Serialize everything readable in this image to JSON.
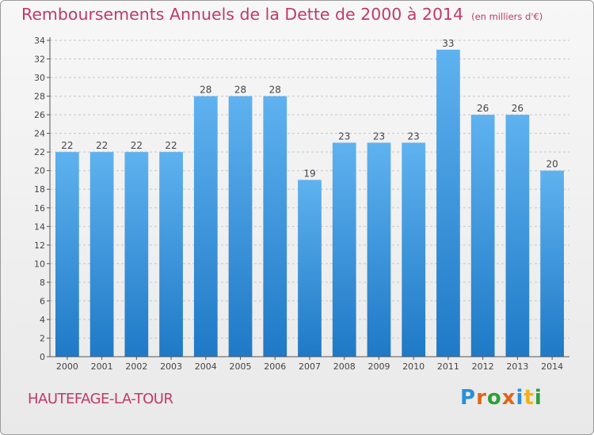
{
  "title": "Remboursements Annuels de la Dette de 2000 à 2014",
  "subtitle": "(en milliers d'€)",
  "commune": "HAUTEFAGE-LA-TOUR",
  "logo": {
    "text": "Proxiti",
    "letters": [
      {
        "ch": "P",
        "color": "#2a8fd6"
      },
      {
        "ch": "r",
        "color": "#e0641c"
      },
      {
        "ch": "o",
        "color": "#2f9e3a"
      },
      {
        "ch": "x",
        "color": "#e0641c"
      },
      {
        "ch": "i",
        "color": "#2a8fd6"
      },
      {
        "ch": "t",
        "color": "#f0b21a"
      },
      {
        "ch": "i",
        "color": "#2f9e3a"
      }
    ]
  },
  "colors": {
    "title": "#c0396a",
    "bar_top": "#5fb2ef",
    "bar_bottom": "#1f79c6",
    "label": "#444444"
  },
  "chart_data": {
    "type": "bar",
    "categories": [
      "2000",
      "2001",
      "2002",
      "2003",
      "2004",
      "2005",
      "2006",
      "2007",
      "2008",
      "2009",
      "2010",
      "2011",
      "2012",
      "2013",
      "2014"
    ],
    "values": [
      22,
      22,
      22,
      22,
      28,
      28,
      28,
      19,
      23,
      23,
      23,
      33,
      26,
      26,
      20
    ],
    "title": "Remboursements Annuels de la Dette de 2000 à 2014",
    "subtitle": "(en milliers d'€)",
    "xlabel": "",
    "ylabel": "",
    "ylim": [
      0,
      34
    ],
    "yticks": [
      0,
      2,
      4,
      6,
      8,
      10,
      12,
      14,
      16,
      18,
      20,
      22,
      24,
      26,
      28,
      30,
      32,
      34
    ],
    "grid": true,
    "data_labels": true
  }
}
